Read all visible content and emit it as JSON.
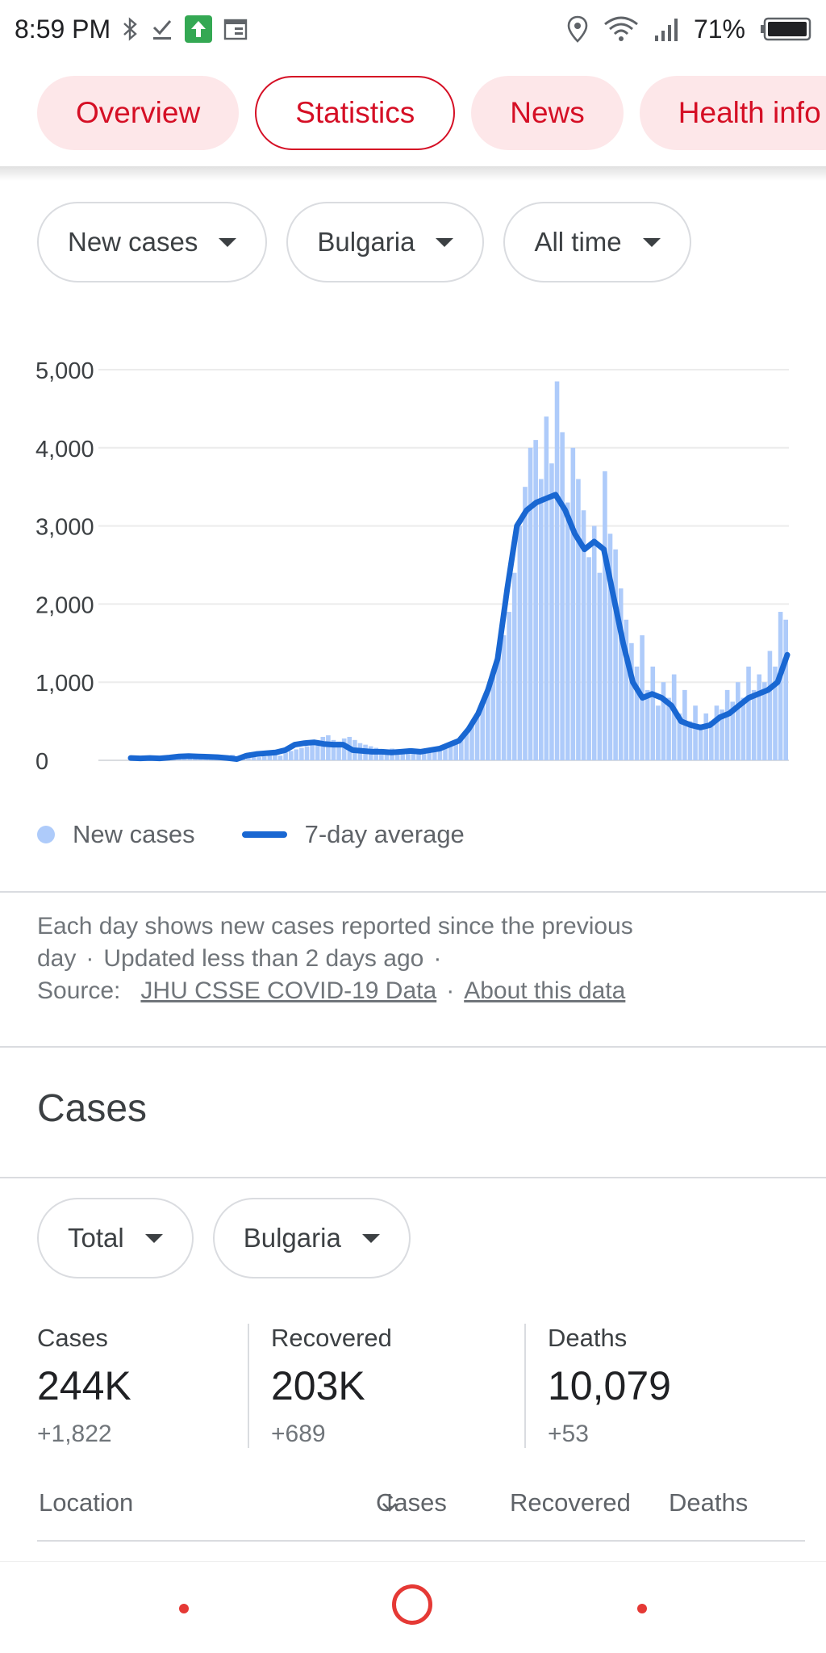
{
  "status_bar": {
    "time": "8:59 PM",
    "battery": "71%"
  },
  "tabs": [
    {
      "label": "Overview",
      "active": false
    },
    {
      "label": "Statistics",
      "active": true
    },
    {
      "label": "News",
      "active": false
    },
    {
      "label": "Health info",
      "active": false
    }
  ],
  "filters": {
    "metric": "New cases",
    "country": "Bulgaria",
    "range": "All time"
  },
  "chart_data": {
    "type": "bar",
    "title": "",
    "xlabel": "",
    "ylabel": "",
    "ylim": [
      0,
      5000
    ],
    "yticks": [
      "5,000",
      "4,000",
      "3,000",
      "2,000",
      "1,000",
      "0"
    ],
    "ytick_values": [
      5000,
      4000,
      3000,
      2000,
      1000,
      0
    ],
    "legend": [
      "New cases",
      "7-day average"
    ],
    "grid": true,
    "series": [
      {
        "name": "New cases",
        "type": "bar",
        "color": "#aecbfa",
        "values": [
          10,
          30,
          20,
          40,
          30,
          50,
          40,
          60,
          70,
          60,
          80,
          60,
          50,
          40,
          60,
          70,
          60,
          50,
          60,
          70,
          50,
          40,
          50,
          60,
          40,
          50,
          70,
          80,
          60,
          100,
          120,
          140,
          160,
          180,
          220,
          260,
          300,
          320,
          260,
          240,
          280,
          300,
          260,
          220,
          200,
          180,
          160,
          140,
          130,
          150,
          120,
          140,
          120,
          130,
          110,
          140,
          130,
          160,
          150,
          180,
          200,
          260,
          300,
          380,
          480,
          600,
          720,
          900,
          1100,
          1400,
          1600,
          1900,
          2400,
          3000,
          3500,
          4000,
          4100,
          3600,
          4400,
          3800,
          4850,
          4200,
          3300,
          4000,
          3600,
          3200,
          2600,
          3000,
          2400,
          3700,
          2900,
          2700,
          2200,
          1800,
          1500,
          1200,
          1600,
          900,
          1200,
          700,
          1000,
          800,
          1100,
          600,
          900,
          500,
          700,
          400,
          600,
          500,
          700,
          650,
          900,
          750,
          1000,
          800,
          1200,
          900,
          1100,
          1000,
          1400,
          1200,
          1900,
          1800
        ]
      },
      {
        "name": "7-day average",
        "type": "line",
        "color": "#1967d2",
        "values": [
          30,
          25,
          30,
          25,
          35,
          50,
          55,
          50,
          45,
          40,
          30,
          15,
          60,
          80,
          90,
          100,
          130,
          200,
          220,
          230,
          210,
          200,
          200,
          130,
          120,
          110,
          110,
          100,
          110,
          120,
          110,
          130,
          150,
          200,
          250,
          400,
          600,
          900,
          1300,
          2200,
          3000,
          3200,
          3300,
          3350,
          3400,
          3200,
          2900,
          2700,
          2800,
          2700,
          2100,
          1500,
          1000,
          800,
          850,
          800,
          700,
          500,
          450,
          420,
          450,
          550,
          600,
          700,
          800,
          850,
          900,
          1000,
          1350
        ]
      }
    ]
  },
  "legend": {
    "bars": "New cases",
    "line": "7-day average"
  },
  "info": {
    "text1": "Each day shows new cases reported since the previous day",
    "sep": "·",
    "updated": "Updated less than 2 days ago",
    "source_label": "Source:",
    "source_link": "JHU CSSE COVID-19 Data",
    "about_link": "About this data"
  },
  "cases_section": {
    "title": "Cases",
    "filter_type": "Total",
    "filter_country": "Bulgaria",
    "stats": [
      {
        "label": "Cases",
        "value": "244K",
        "delta": "+1,822"
      },
      {
        "label": "Recovered",
        "value": "203K",
        "delta": "+689"
      },
      {
        "label": "Deaths",
        "value": "10,079",
        "delta": "+53"
      }
    ],
    "table_headers": {
      "location": "Location",
      "cases": "Cases",
      "recovered": "Recovered",
      "deaths": "Deaths"
    }
  }
}
